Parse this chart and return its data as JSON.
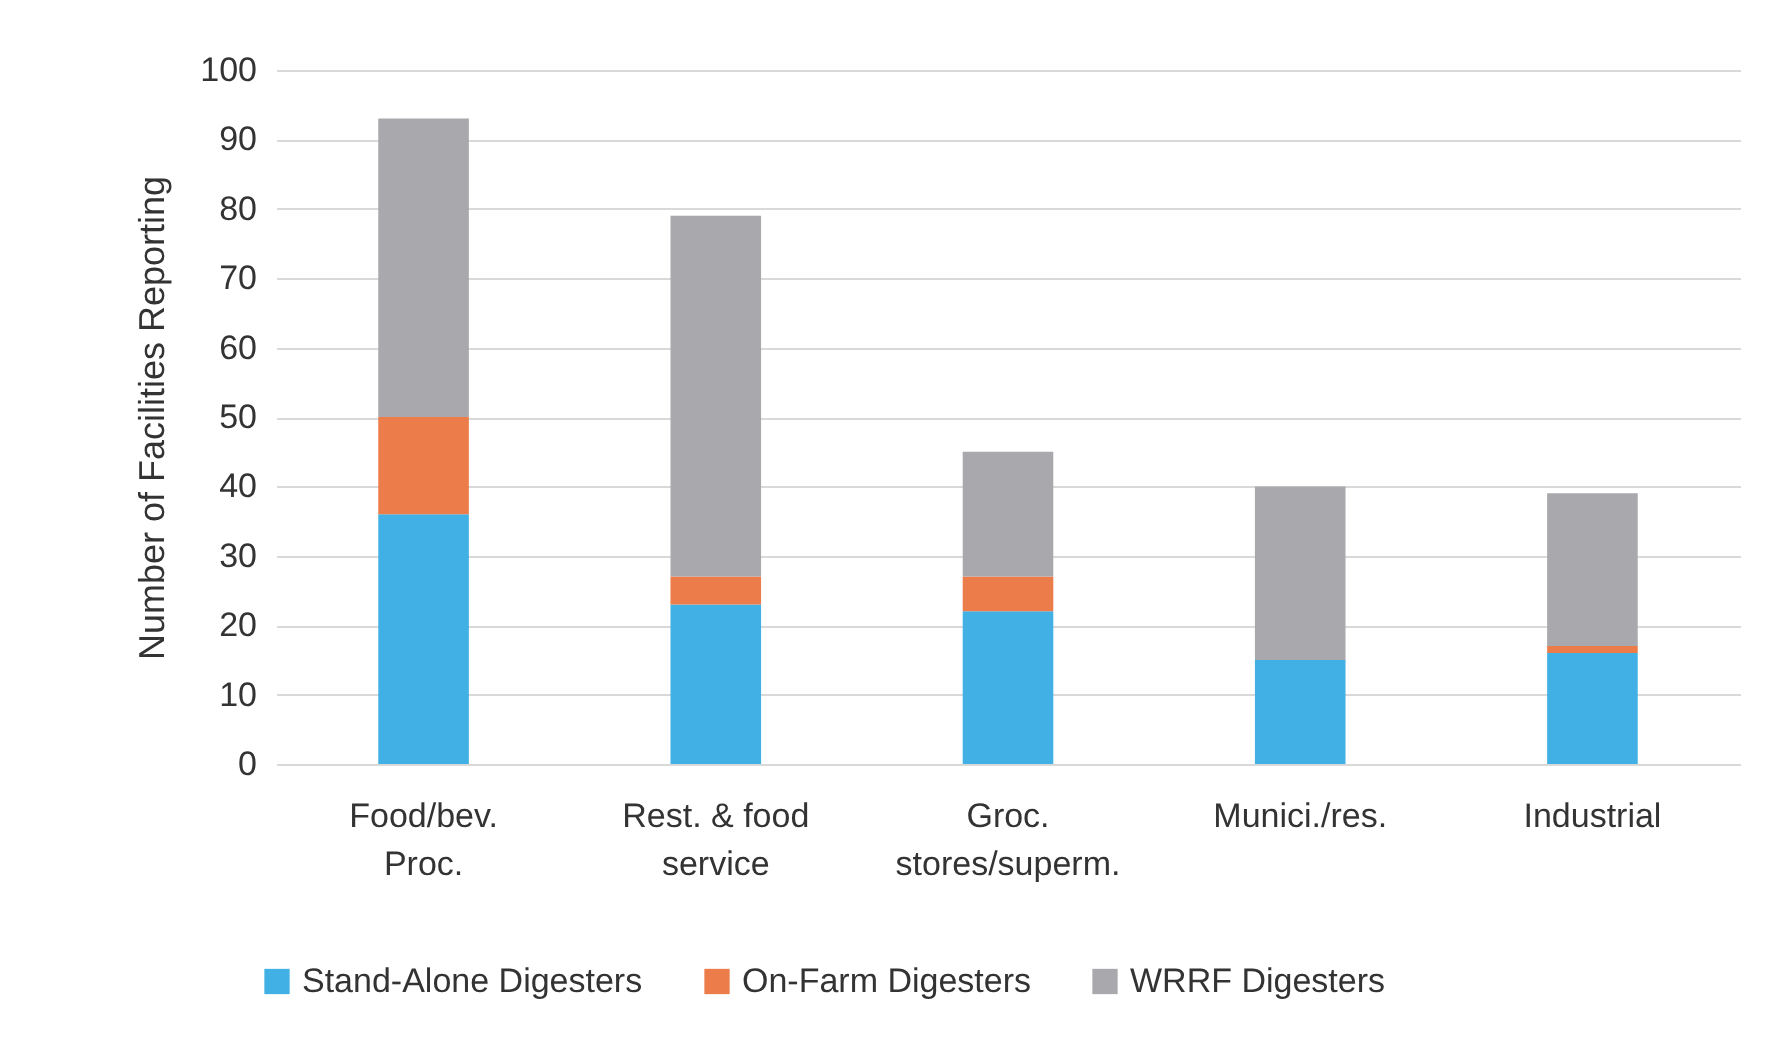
{
  "chart_data": {
    "type": "bar",
    "ylabel": "Number of Facilities Reporting",
    "categories": [
      "Food/bev.\nProc.",
      "Rest. & food\nservice",
      "Groc.\nstores/superm.",
      "Munici./res.",
      "Industrial"
    ],
    "stacked": true,
    "ylim": [
      0,
      100
    ],
    "yticks": [
      0,
      10,
      20,
      30,
      40,
      50,
      60,
      70,
      80,
      90,
      100
    ],
    "grid": "y",
    "legend": "bottom",
    "series": [
      {
        "name": "Stand-Alone Digesters",
        "color": "#41b0e4",
        "values": [
          36,
          23,
          22,
          15,
          16
        ]
      },
      {
        "name": "On-Farm Digesters",
        "color": "#ec7c4a",
        "values": [
          14,
          4,
          5,
          0,
          1
        ]
      },
      {
        "name": "WRRF Digesters",
        "color": "#a9a9ad",
        "values": [
          43,
          52,
          18,
          25,
          22
        ]
      }
    ]
  }
}
